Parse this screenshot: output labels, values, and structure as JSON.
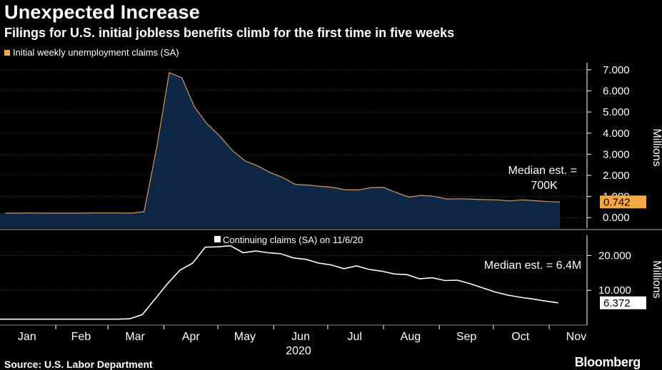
{
  "title": "Unexpected Increase",
  "subtitle": "Filings for U.S. initial jobless benefits climb for the first time in five weeks",
  "footer": "Source: U.S. Labor Department",
  "brand": "Bloomberg",
  "colors": {
    "background": "#000000",
    "initial_line": "#d59a5b",
    "initial_fill": "#0f2847",
    "continuing_line": "#ffffff",
    "highlight_orange": "#f5a742",
    "grid": "#5a5a5a"
  },
  "chart_data": [
    {
      "type": "area",
      "legend": "Initial weekly unemployment claims (SA)",
      "ylabel": "Millions",
      "ylim": [
        -0.5,
        7.2
      ],
      "yticks": [
        "7.000",
        "6.000",
        "5.000",
        "4.000",
        "3.000",
        "2.000",
        "1.000",
        "0.000"
      ],
      "ytick_values": [
        7,
        6,
        5,
        4,
        3,
        2,
        1,
        0
      ],
      "annotation": "Median est. =\n700K",
      "last_value_label": "0.742",
      "series": [
        {
          "x": [
            "2020-01-04",
            "2020-01-11",
            "2020-01-18",
            "2020-01-25",
            "2020-02-01",
            "2020-02-08",
            "2020-02-15",
            "2020-02-22",
            "2020-02-29",
            "2020-03-07",
            "2020-03-14",
            "2020-03-21",
            "2020-03-28",
            "2020-04-04",
            "2020-04-11",
            "2020-04-18",
            "2020-04-25",
            "2020-05-02",
            "2020-05-09",
            "2020-05-16",
            "2020-05-23",
            "2020-05-30",
            "2020-06-06",
            "2020-06-13",
            "2020-06-20",
            "2020-06-27",
            "2020-07-04",
            "2020-07-11",
            "2020-07-18",
            "2020-07-25",
            "2020-08-01",
            "2020-08-08",
            "2020-08-15",
            "2020-08-22",
            "2020-08-29",
            "2020-09-05",
            "2020-09-12",
            "2020-09-19",
            "2020-09-26",
            "2020-10-03",
            "2020-10-10",
            "2020-10-17",
            "2020-10-24",
            "2020-10-31",
            "2020-11-07"
          ],
          "values": [
            0.21,
            0.21,
            0.22,
            0.21,
            0.21,
            0.21,
            0.21,
            0.22,
            0.22,
            0.22,
            0.21,
            0.28,
            3.31,
            6.87,
            6.62,
            5.24,
            4.44,
            3.87,
            3.18,
            2.69,
            2.45,
            2.13,
            1.9,
            1.57,
            1.54,
            1.48,
            1.43,
            1.31,
            1.31,
            1.42,
            1.43,
            1.19,
            0.97,
            1.05,
            1.01,
            0.88,
            0.89,
            0.87,
            0.85,
            0.84,
            0.79,
            0.84,
            0.8,
            0.76,
            0.74
          ]
        }
      ]
    },
    {
      "type": "line",
      "legend": "Continuing claims (SA) on 11/6/20",
      "ylabel": "Millions",
      "ylim": [
        0,
        25
      ],
      "yticks": [
        "20.000",
        "10.000"
      ],
      "ytick_values": [
        20,
        10
      ],
      "annotation": "Median est. = 6.4M",
      "last_value_label": "6.372",
      "series": [
        {
          "x": [
            "2020-01-03",
            "2020-01-10",
            "2020-01-17",
            "2020-01-24",
            "2020-01-31",
            "2020-02-07",
            "2020-02-14",
            "2020-02-21",
            "2020-02-28",
            "2020-03-06",
            "2020-03-13",
            "2020-03-20",
            "2020-03-27",
            "2020-04-03",
            "2020-04-10",
            "2020-04-17",
            "2020-04-24",
            "2020-05-01",
            "2020-05-08",
            "2020-05-15",
            "2020-05-22",
            "2020-05-29",
            "2020-06-05",
            "2020-06-12",
            "2020-06-19",
            "2020-06-26",
            "2020-07-03",
            "2020-07-10",
            "2020-07-17",
            "2020-07-24",
            "2020-07-31",
            "2020-08-07",
            "2020-08-14",
            "2020-08-21",
            "2020-08-28",
            "2020-09-04",
            "2020-09-11",
            "2020-09-18",
            "2020-09-25",
            "2020-10-02",
            "2020-10-09",
            "2020-10-16",
            "2020-10-23",
            "2020-10-30",
            "2020-11-06"
          ],
          "values": [
            1.7,
            1.7,
            1.7,
            1.7,
            1.7,
            1.7,
            1.7,
            1.7,
            1.7,
            1.7,
            1.8,
            3.0,
            7.4,
            11.9,
            15.8,
            17.8,
            22.4,
            22.5,
            22.8,
            20.8,
            21.3,
            20.8,
            20.5,
            19.3,
            18.9,
            17.8,
            17.3,
            16.2,
            17.0,
            16.0,
            15.5,
            14.7,
            14.5,
            13.3,
            13.6,
            12.8,
            12.9,
            11.9,
            10.7,
            9.5,
            8.6,
            8.0,
            7.5,
            6.9,
            6.4
          ]
        }
      ]
    }
  ],
  "x_axis": {
    "labels": [
      {
        "label": "Jan",
        "date": "2020-01-16"
      },
      {
        "label": "Feb",
        "date": "2020-02-15"
      },
      {
        "label": "Mar",
        "date": "2020-03-16"
      },
      {
        "label": "Apr",
        "date": "2020-04-16"
      },
      {
        "label": "May",
        "date": "2020-05-16"
      },
      {
        "label": "Jun",
        "date": "2020-06-16"
      },
      {
        "label": "Jul",
        "date": "2020-07-16"
      },
      {
        "label": "Aug",
        "date": "2020-08-16"
      },
      {
        "label": "Sep",
        "date": "2020-09-16"
      },
      {
        "label": "Oct",
        "date": "2020-10-16"
      },
      {
        "label": "Nov",
        "date": "2020-11-16"
      }
    ],
    "year": "2020",
    "range": [
      "2020-01-01",
      "2020-11-22"
    ]
  }
}
